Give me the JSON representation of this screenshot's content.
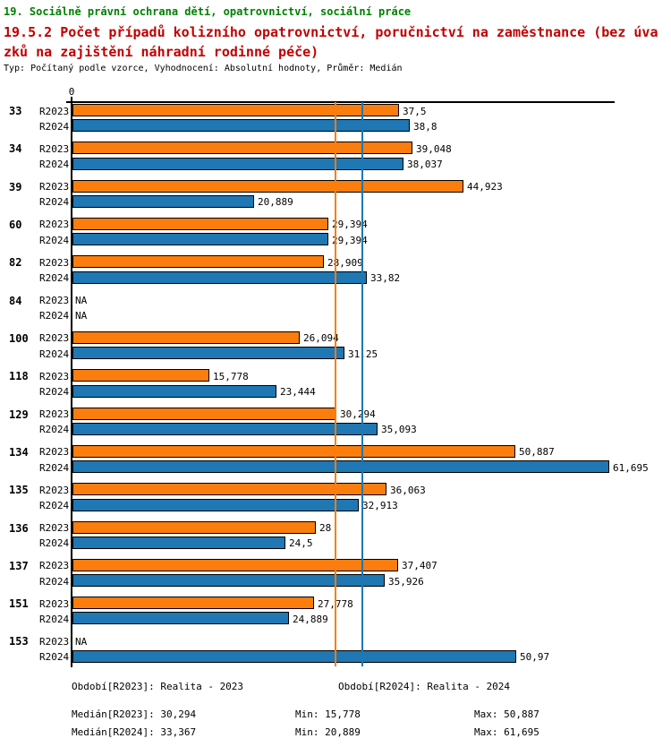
{
  "header": {
    "section_title": "19. Sociálně právní ochrana dětí, opatrovnictví, sociální práce",
    "indicator_title_line1": "19.5.2 Počet případů kolizního opatrovnictví, poručnictví na zaměstnance (bez úva",
    "indicator_title_line2": "zků na zajištění náhradní rodinné péče)",
    "meta_line": "Typ: Počítaný podle vzorce, Vyhodnocení: Absolutní hodnoty, Průměr: Medián",
    "colors": {
      "section": "#008000",
      "indicator": "#c00000",
      "meta": "#000000"
    }
  },
  "chart_data": {
    "type": "bar",
    "orientation": "horizontal",
    "title": "19.5.2 Počet případů kolizního opatrovnictví, poručnictví na zaměstnance (bez úvazků na zajištění náhradní rodinné péče)",
    "xlabel": "",
    "ylabel": "",
    "xlim": [
      0,
      62.5
    ],
    "grid": false,
    "axis": {
      "zero_label": "0"
    },
    "series_labels": [
      "R2023",
      "R2024"
    ],
    "colors": {
      "R2023": "#fa7d0e",
      "R2024": "#1f77b4",
      "bar_border": "#000000"
    },
    "reference_lines": [
      {
        "name": "median-r2023",
        "value": 30.294,
        "color": "#fa7d0e"
      },
      {
        "name": "median-r2024",
        "value": 33.367,
        "color": "#1f77b4"
      }
    ],
    "groups": [
      {
        "id": "33",
        "bars": [
          {
            "series": "R2023",
            "label": "37,5",
            "value": 37.5
          },
          {
            "series": "R2024",
            "label": "38,8",
            "value": 38.8
          }
        ]
      },
      {
        "id": "34",
        "bars": [
          {
            "series": "R2023",
            "label": "39,048",
            "value": 39.048
          },
          {
            "series": "R2024",
            "label": "38,037",
            "value": 38.037
          }
        ]
      },
      {
        "id": "39",
        "bars": [
          {
            "series": "R2023",
            "label": "44,923",
            "value": 44.923
          },
          {
            "series": "R2024",
            "label": "20,889",
            "value": 20.889
          }
        ]
      },
      {
        "id": "60",
        "bars": [
          {
            "series": "R2023",
            "label": "29,394",
            "value": 29.394
          },
          {
            "series": "R2024",
            "label": "29,394",
            "value": 29.394
          }
        ]
      },
      {
        "id": "82",
        "bars": [
          {
            "series": "R2023",
            "label": "28,909",
            "value": 28.909
          },
          {
            "series": "R2024",
            "label": "33,82",
            "value": 33.82
          }
        ]
      },
      {
        "id": "84",
        "bars": [
          {
            "series": "R2023",
            "label": "NA",
            "value": null
          },
          {
            "series": "R2024",
            "label": "NA",
            "value": null
          }
        ]
      },
      {
        "id": "100",
        "bars": [
          {
            "series": "R2023",
            "label": "26,094",
            "value": 26.094
          },
          {
            "series": "R2024",
            "label": "31,25",
            "value": 31.25
          }
        ]
      },
      {
        "id": "118",
        "bars": [
          {
            "series": "R2023",
            "label": "15,778",
            "value": 15.778
          },
          {
            "series": "R2024",
            "label": "23,444",
            "value": 23.444
          }
        ]
      },
      {
        "id": "129",
        "bars": [
          {
            "series": "R2023",
            "label": "30,294",
            "value": 30.294
          },
          {
            "series": "R2024",
            "label": "35,093",
            "value": 35.093
          }
        ]
      },
      {
        "id": "134",
        "bars": [
          {
            "series": "R2023",
            "label": "50,887",
            "value": 50.887
          },
          {
            "series": "R2024",
            "label": "61,695",
            "value": 61.695
          }
        ]
      },
      {
        "id": "135",
        "bars": [
          {
            "series": "R2023",
            "label": "36,063",
            "value": 36.063
          },
          {
            "series": "R2024",
            "label": "32,913",
            "value": 32.913
          }
        ]
      },
      {
        "id": "136",
        "bars": [
          {
            "series": "R2023",
            "label": "28",
            "value": 28
          },
          {
            "series": "R2024",
            "label": "24,5",
            "value": 24.5
          }
        ]
      },
      {
        "id": "137",
        "bars": [
          {
            "series": "R2023",
            "label": "37,407",
            "value": 37.407
          },
          {
            "series": "R2024",
            "label": "35,926",
            "value": 35.926
          }
        ]
      },
      {
        "id": "151",
        "bars": [
          {
            "series": "R2023",
            "label": "27,778",
            "value": 27.778
          },
          {
            "series": "R2024",
            "label": "24,889",
            "value": 24.889
          }
        ]
      },
      {
        "id": "153",
        "bars": [
          {
            "series": "R2023",
            "label": "NA",
            "value": null
          },
          {
            "series": "R2024",
            "label": "50,97",
            "value": 50.97
          }
        ]
      }
    ]
  },
  "legend": {
    "period_r2023": "Období[R2023]: Realita - 2023",
    "period_r2024": "Období[R2024]: Realita - 2024",
    "median_r2023": "Medián[R2023]: 30,294",
    "median_r2024": "Medián[R2024]: 33,367",
    "min_r2023": "Min: 15,778",
    "min_r2024": "Min: 20,889",
    "max_r2023": "Max: 50,887",
    "max_r2024": "Max: 61,695"
  }
}
